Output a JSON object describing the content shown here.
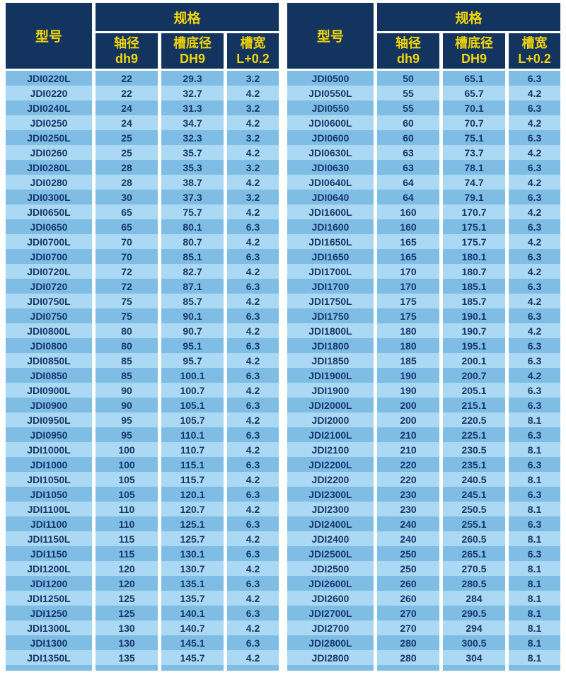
{
  "colors": {
    "header_bg": "#12345E",
    "header_text": "#F2D40A",
    "row_odd_bg": "#7FBDE5",
    "row_even_bg": "#ABD8F2",
    "cell_text": "#14386B",
    "page_bg": "#FFFFFF"
  },
  "columns": {
    "model": "型号",
    "spec_group": "规格",
    "sub": [
      {
        "label": "轴径",
        "sublabel": "dh9"
      },
      {
        "label": "槽底径",
        "sublabel": "DH9"
      },
      {
        "label": "槽宽",
        "sublabel": "L+0.2"
      }
    ]
  },
  "tables": [
    {
      "rows": [
        [
          "JDI0220L",
          "22",
          "29.3",
          "3.2"
        ],
        [
          "JDI0220",
          "22",
          "32.7",
          "4.2"
        ],
        [
          "JDI0240L",
          "24",
          "31.3",
          "3.2"
        ],
        [
          "JDI0250",
          "24",
          "34.7",
          "4.2"
        ],
        [
          "JDI0250L",
          "25",
          "32.3",
          "3.2"
        ],
        [
          "JDI0260",
          "25",
          "35.7",
          "4.2"
        ],
        [
          "JDI0280L",
          "28",
          "35.3",
          "3.2"
        ],
        [
          "JDI0280",
          "28",
          "38.7",
          "4.2"
        ],
        [
          "JDI0300L",
          "30",
          "37.3",
          "3.2"
        ],
        [
          "JDI0650L",
          "65",
          "75.7",
          "4.2"
        ],
        [
          "JDI0650",
          "65",
          "80.1",
          "6.3"
        ],
        [
          "JDI0700L",
          "70",
          "80.7",
          "4.2"
        ],
        [
          "JDI0700",
          "70",
          "85.1",
          "6.3"
        ],
        [
          "JDI0720L",
          "72",
          "82.7",
          "4.2"
        ],
        [
          "JDI0720",
          "72",
          "87.1",
          "6.3"
        ],
        [
          "JDI0750L",
          "75",
          "85.7",
          "4.2"
        ],
        [
          "JDI0750",
          "75",
          "90.1",
          "6.3"
        ],
        [
          "JDI0800L",
          "80",
          "90.7",
          "4.2"
        ],
        [
          "JDI0800",
          "80",
          "95.1",
          "6.3"
        ],
        [
          "JDI0850L",
          "85",
          "95.7",
          "4.2"
        ],
        [
          "JDI0850",
          "85",
          "100.1",
          "6.3"
        ],
        [
          "JDI0900L",
          "90",
          "100.7",
          "4.2"
        ],
        [
          "JDI0900",
          "90",
          "105.1",
          "6.3"
        ],
        [
          "JDI0950L",
          "95",
          "105.7",
          "4.2"
        ],
        [
          "JDI0950",
          "95",
          "110.1",
          "6.3"
        ],
        [
          "JDI1000L",
          "100",
          "110.7",
          "4.2"
        ],
        [
          "JDI1000",
          "100",
          "115.1",
          "6.3"
        ],
        [
          "JDI1050L",
          "105",
          "115.7",
          "4.2"
        ],
        [
          "JDI1050",
          "105",
          "120.1",
          "6.3"
        ],
        [
          "JDI1100L",
          "110",
          "120.7",
          "4.2"
        ],
        [
          "JDI1100",
          "110",
          "125.1",
          "6.3"
        ],
        [
          "JDI1150L",
          "115",
          "125.7",
          "4.2"
        ],
        [
          "JDI1150",
          "115",
          "130.1",
          "6.3"
        ],
        [
          "JDI1200L",
          "120",
          "130.7",
          "4.2"
        ],
        [
          "JDI1200",
          "120",
          "135.1",
          "6.3"
        ],
        [
          "JDI1250L",
          "125",
          "135.7",
          "4.2"
        ],
        [
          "JDI1250",
          "125",
          "140.1",
          "6.3"
        ],
        [
          "JDI1300L",
          "130",
          "140.7",
          "4.2"
        ],
        [
          "JDI1300",
          "130",
          "145.1",
          "6.3"
        ],
        [
          "JDI1350L",
          "135",
          "145.7",
          "4.2"
        ]
      ]
    },
    {
      "rows": [
        [
          "JDI0500",
          "50",
          "65.1",
          "6.3"
        ],
        [
          "JDI0550L",
          "55",
          "65.7",
          "4.2"
        ],
        [
          "JDI0550",
          "55",
          "70.1",
          "6.3"
        ],
        [
          "JDI0600L",
          "60",
          "70.7",
          "4.2"
        ],
        [
          "JDI0600",
          "60",
          "75.1",
          "6.3"
        ],
        [
          "JDI0630L",
          "63",
          "73.7",
          "4.2"
        ],
        [
          "JDI0630",
          "63",
          "78.1",
          "6.3"
        ],
        [
          "JDI0640L",
          "64",
          "74.7",
          "4.2"
        ],
        [
          "JDI0640",
          "64",
          "79.1",
          "6.3"
        ],
        [
          "JDI1600L",
          "160",
          "170.7",
          "4.2"
        ],
        [
          "JDI1600",
          "160",
          "175.1",
          "6.3"
        ],
        [
          "JDI1650L",
          "165",
          "175.7",
          "4.2"
        ],
        [
          "JDI1650",
          "165",
          "180.1",
          "6.3"
        ],
        [
          "JDI1700L",
          "170",
          "180.7",
          "4.2"
        ],
        [
          "JDI1700",
          "170",
          "185.1",
          "6.3"
        ],
        [
          "JDI1750L",
          "175",
          "185.7",
          "4.2"
        ],
        [
          "JDI1750",
          "175",
          "190.1",
          "6.3"
        ],
        [
          "JDI1800L",
          "180",
          "190.7",
          "4.2"
        ],
        [
          "JDI1800",
          "180",
          "195.1",
          "6.3"
        ],
        [
          "JDI1850",
          "185",
          "200.1",
          "6.3"
        ],
        [
          "JDI1900L",
          "190",
          "200.7",
          "4.2"
        ],
        [
          "JDI1900",
          "190",
          "205.1",
          "6.3"
        ],
        [
          "JDI2000L",
          "200",
          "215.1",
          "6.3"
        ],
        [
          "JDI2000",
          "200",
          "220.5",
          "8.1"
        ],
        [
          "JDI2100L",
          "210",
          "225.1",
          "6.3"
        ],
        [
          "JDI2100",
          "210",
          "230.5",
          "8.1"
        ],
        [
          "JDI2200L",
          "220",
          "235.1",
          "6.3"
        ],
        [
          "JDI2200",
          "220",
          "240.5",
          "8.1"
        ],
        [
          "JDI2300L",
          "230",
          "245.1",
          "6.3"
        ],
        [
          "JDI2300",
          "230",
          "250.5",
          "8.1"
        ],
        [
          "JDI2400L",
          "240",
          "255.1",
          "6.3"
        ],
        [
          "JDI2400",
          "240",
          "260.5",
          "8.1"
        ],
        [
          "JDI2500L",
          "250",
          "265.1",
          "6.3"
        ],
        [
          "JDI2500",
          "250",
          "270.5",
          "8.1"
        ],
        [
          "JDI2600L",
          "260",
          "280.5",
          "8.1"
        ],
        [
          "JDI2600",
          "260",
          "284",
          "8.1"
        ],
        [
          "JDI2700L",
          "270",
          "290.5",
          "8.1"
        ],
        [
          "JDI2700",
          "270",
          "294",
          "8.1"
        ],
        [
          "JDI2800L",
          "280",
          "300.5",
          "8.1"
        ],
        [
          "JDI2800",
          "280",
          "304",
          "8.1"
        ]
      ]
    }
  ]
}
